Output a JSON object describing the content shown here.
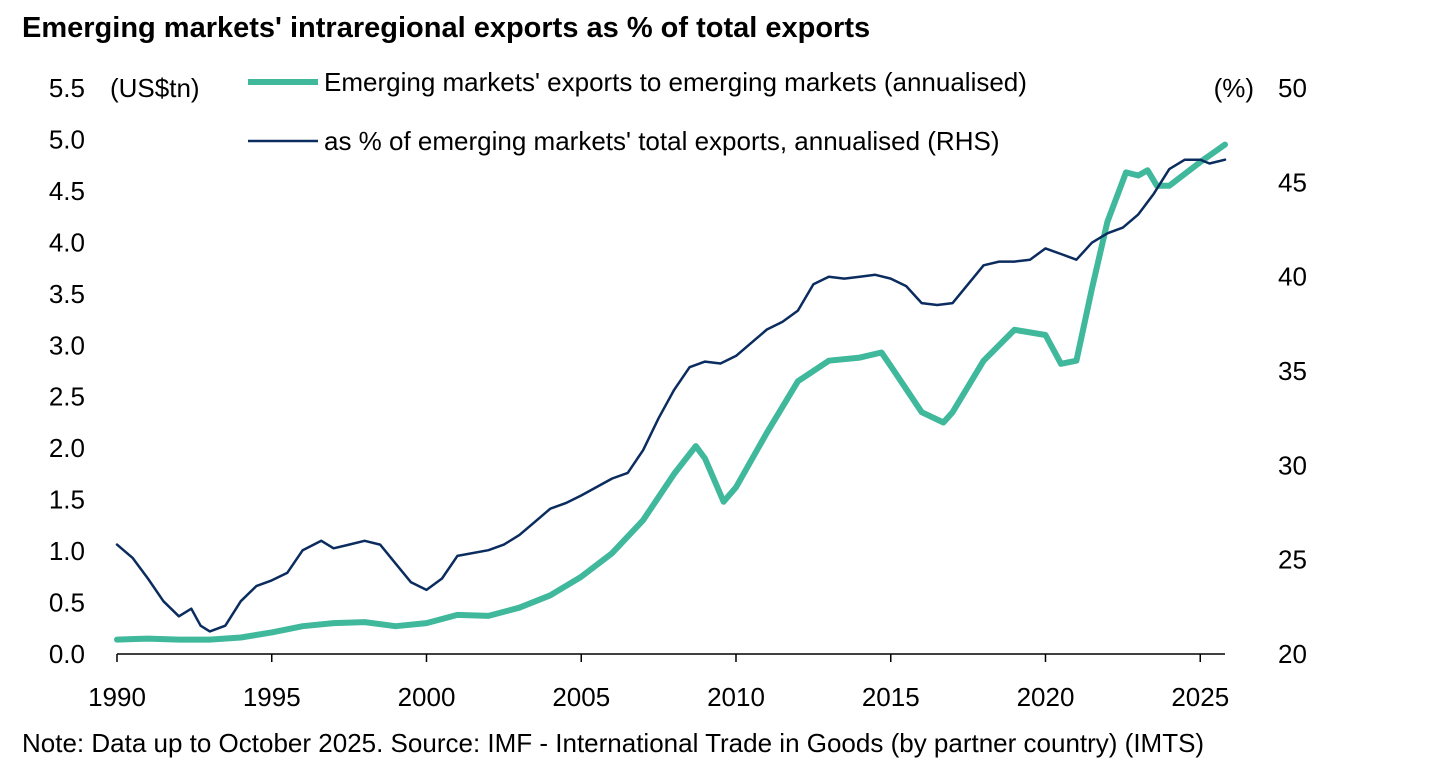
{
  "chart_data": {
    "type": "line",
    "title": "Emerging markets' intraregional exports as % of total exports",
    "note": "Note: Data up to October 2025. Source: IMF - International Trade in Goods (by partner country) (IMTS)",
    "ylabel": "(US$tn)",
    "y2label": "(%)",
    "xlim": [
      1990,
      2025.8
    ],
    "ylim": [
      0,
      5.5
    ],
    "y2lim": [
      20,
      50
    ],
    "x_ticks": [
      "1990",
      "1995",
      "2000",
      "2005",
      "2010",
      "2015",
      "2020",
      "2025"
    ],
    "y_ticks": [
      "0.0",
      "0.5",
      "1.0",
      "1.5",
      "2.0",
      "2.5",
      "3.0",
      "3.5",
      "4.0",
      "4.5",
      "5.0",
      "5.5"
    ],
    "y2_ticks": [
      "20",
      "25",
      "30",
      "35",
      "40",
      "45",
      "50"
    ],
    "legend_position": "top-center",
    "series": [
      {
        "name": "Emerging markets' exports to emerging markets (annualised)",
        "axis": "left",
        "color": "#3fb89c",
        "points": [
          [
            1990,
            0.14
          ],
          [
            1991,
            0.15
          ],
          [
            1992,
            0.14
          ],
          [
            1993,
            0.14
          ],
          [
            1994,
            0.16
          ],
          [
            1995,
            0.21
          ],
          [
            1996,
            0.27
          ],
          [
            1997,
            0.3
          ],
          [
            1998,
            0.31
          ],
          [
            1999,
            0.27
          ],
          [
            2000,
            0.3
          ],
          [
            2001,
            0.38
          ],
          [
            2002,
            0.37
          ],
          [
            2003,
            0.45
          ],
          [
            2004,
            0.57
          ],
          [
            2005,
            0.75
          ],
          [
            2006,
            0.98
          ],
          [
            2007,
            1.3
          ],
          [
            2008,
            1.75
          ],
          [
            2008.7,
            2.02
          ],
          [
            2009,
            1.9
          ],
          [
            2009.6,
            1.48
          ],
          [
            2010,
            1.62
          ],
          [
            2011,
            2.15
          ],
          [
            2012,
            2.65
          ],
          [
            2013,
            2.85
          ],
          [
            2014,
            2.88
          ],
          [
            2014.7,
            2.93
          ],
          [
            2015,
            2.8
          ],
          [
            2016,
            2.35
          ],
          [
            2016.7,
            2.25
          ],
          [
            2017,
            2.35
          ],
          [
            2018,
            2.85
          ],
          [
            2019,
            3.15
          ],
          [
            2020,
            3.1
          ],
          [
            2020.5,
            2.82
          ],
          [
            2021,
            2.85
          ],
          [
            2021.5,
            3.55
          ],
          [
            2022,
            4.2
          ],
          [
            2022.6,
            4.68
          ],
          [
            2023,
            4.65
          ],
          [
            2023.3,
            4.7
          ],
          [
            2023.6,
            4.55
          ],
          [
            2024,
            4.55
          ],
          [
            2025,
            4.78
          ],
          [
            2025.8,
            4.95
          ]
        ]
      },
      {
        "name": "as % of emerging markets' total exports, annualised (RHS)",
        "axis": "right",
        "color": "#0b2c5e",
        "points": [
          [
            1990,
            25.8
          ],
          [
            1990.5,
            25.1
          ],
          [
            1991,
            24.0
          ],
          [
            1991.5,
            22.8
          ],
          [
            1992,
            22.0
          ],
          [
            1992.4,
            22.4
          ],
          [
            1992.7,
            21.5
          ],
          [
            1993,
            21.2
          ],
          [
            1993.5,
            21.5
          ],
          [
            1994,
            22.8
          ],
          [
            1994.5,
            23.6
          ],
          [
            1995,
            23.9
          ],
          [
            1995.5,
            24.3
          ],
          [
            1996,
            25.5
          ],
          [
            1996.6,
            26.0
          ],
          [
            1997,
            25.6
          ],
          [
            1997.5,
            25.8
          ],
          [
            1998,
            26.0
          ],
          [
            1998.5,
            25.8
          ],
          [
            1999,
            24.8
          ],
          [
            1999.5,
            23.8
          ],
          [
            2000,
            23.4
          ],
          [
            2000.5,
            24.0
          ],
          [
            2001,
            25.2
          ],
          [
            2002,
            25.5
          ],
          [
            2002.5,
            25.8
          ],
          [
            2003,
            26.3
          ],
          [
            2003.5,
            27.0
          ],
          [
            2004,
            27.7
          ],
          [
            2004.5,
            28.0
          ],
          [
            2005,
            28.4
          ],
          [
            2006,
            29.3
          ],
          [
            2006.5,
            29.6
          ],
          [
            2007,
            30.8
          ],
          [
            2007.5,
            32.5
          ],
          [
            2008,
            34.0
          ],
          [
            2008.5,
            35.2
          ],
          [
            2009,
            35.5
          ],
          [
            2009.5,
            35.4
          ],
          [
            2010,
            35.8
          ],
          [
            2010.5,
            36.5
          ],
          [
            2011,
            37.2
          ],
          [
            2011.5,
            37.6
          ],
          [
            2012,
            38.2
          ],
          [
            2012.5,
            39.6
          ],
          [
            2013,
            40.0
          ],
          [
            2013.5,
            39.9
          ],
          [
            2014,
            40.0
          ],
          [
            2014.5,
            40.1
          ],
          [
            2015,
            39.9
          ],
          [
            2015.5,
            39.5
          ],
          [
            2016,
            38.6
          ],
          [
            2016.5,
            38.5
          ],
          [
            2017,
            38.6
          ],
          [
            2017.5,
            39.6
          ],
          [
            2018,
            40.6
          ],
          [
            2018.5,
            40.8
          ],
          [
            2019,
            40.8
          ],
          [
            2019.5,
            40.9
          ],
          [
            2020,
            41.5
          ],
          [
            2020.5,
            41.2
          ],
          [
            2021,
            40.9
          ],
          [
            2021.5,
            41.8
          ],
          [
            2022,
            42.3
          ],
          [
            2022.5,
            42.6
          ],
          [
            2023,
            43.3
          ],
          [
            2023.5,
            44.4
          ],
          [
            2024,
            45.7
          ],
          [
            2024.5,
            46.2
          ],
          [
            2025,
            46.2
          ],
          [
            2025.3,
            46.0
          ],
          [
            2025.8,
            46.2
          ]
        ]
      }
    ]
  }
}
